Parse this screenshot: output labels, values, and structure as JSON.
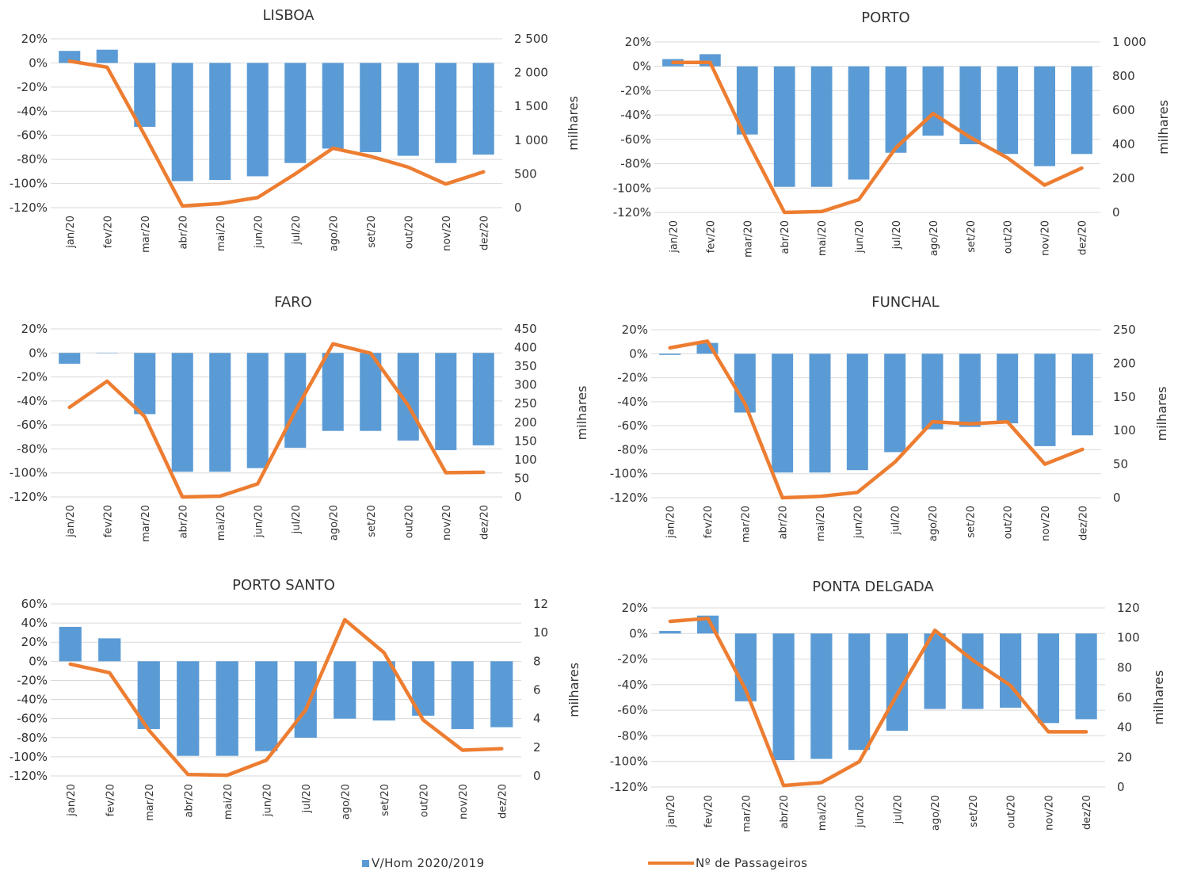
{
  "colors": {
    "bars": "#5B9BD5",
    "line": "#ED7D31",
    "grid": "#D9D9D9",
    "text": "#333333"
  },
  "legend": {
    "bar_label": "V/Hom 2020/2019",
    "line_label": "Nº de Passageiros"
  },
  "chart_data": [
    {
      "type": "bar",
      "title": "LISBOA",
      "categories": [
        "jan/20",
        "fev/20",
        "mar/20",
        "abr/20",
        "mai/20",
        "jun/20",
        "jul/20",
        "ago/20",
        "set/20",
        "out/20",
        "nov/20",
        "dez/20"
      ],
      "ylim": [
        -120,
        20
      ],
      "y_ticks": [
        20,
        0,
        -20,
        -40,
        -60,
        -80,
        -100,
        -120
      ],
      "y_tick_labels": [
        "20%",
        "0%",
        "-20%",
        "-40%",
        "-60%",
        "-80%",
        "-100%",
        "-120%"
      ],
      "y2lim": [
        0,
        2500
      ],
      "y2_ticks": [
        0,
        500,
        1000,
        1500,
        2000,
        2500
      ],
      "y2_tick_labels": [
        "0",
        "500",
        "1 000",
        "1 500",
        "2 000",
        "2 500"
      ],
      "y2label": "milhares",
      "series": [
        {
          "name": "V/Hom 2020/2019",
          "type": "bar",
          "axis": "left",
          "values": [
            10,
            11,
            -53,
            -98,
            -97,
            -94,
            -83,
            -71,
            -74,
            -77,
            -83,
            -76
          ]
        },
        {
          "name": "Nº de Passageiros",
          "type": "line",
          "axis": "right",
          "values": [
            2170,
            2080,
            1070,
            25,
            60,
            150,
            500,
            880,
            760,
            600,
            350,
            530
          ]
        }
      ]
    },
    {
      "type": "bar",
      "title": "PORTO",
      "categories": [
        "jan/20",
        "fev/20",
        "mar/20",
        "abr/20",
        "mai/20",
        "jun/20",
        "jul/20",
        "ago/20",
        "set/20",
        "out/20",
        "nov/20",
        "dez/20"
      ],
      "ylim": [
        -120,
        20
      ],
      "y_ticks": [
        20,
        0,
        -20,
        -40,
        -60,
        -80,
        -100,
        -120
      ],
      "y_tick_labels": [
        "20%",
        "0%",
        "-20%",
        "-40%",
        "-60%",
        "-80%",
        "-100%",
        "-120%"
      ],
      "y2lim": [
        0,
        1000
      ],
      "y2_ticks": [
        0,
        200,
        400,
        600,
        800,
        1000
      ],
      "y2_tick_labels": [
        "0",
        "200",
        "400",
        "600",
        "800",
        "1 000"
      ],
      "y2label": "milhares",
      "series": [
        {
          "name": "V/Hom 2020/2019",
          "type": "bar",
          "axis": "left",
          "values": [
            6,
            10,
            -56,
            -99,
            -99,
            -93,
            -71,
            -57,
            -64,
            -72,
            -82,
            -72
          ]
        },
        {
          "name": "Nº de Passageiros",
          "type": "line",
          "axis": "right",
          "values": [
            880,
            880,
            420,
            0,
            5,
            75,
            380,
            580,
            440,
            320,
            160,
            260
          ]
        }
      ]
    },
    {
      "type": "bar",
      "title": "FARO",
      "categories": [
        "jan/20",
        "fev/20",
        "mar/20",
        "abr/20",
        "mai/20",
        "jun/20",
        "jul/20",
        "ago/20",
        "set/20",
        "out/20",
        "nov/20",
        "dez/20"
      ],
      "ylim": [
        -120,
        20
      ],
      "y_ticks": [
        20,
        0,
        -20,
        -40,
        -60,
        -80,
        -100,
        -120
      ],
      "y_tick_labels": [
        "20%",
        "0%",
        "-20%",
        "-40%",
        "-60%",
        "-80%",
        "-100%",
        "-120%"
      ],
      "y2lim": [
        0,
        450
      ],
      "y2_ticks": [
        0,
        50,
        100,
        150,
        200,
        250,
        300,
        350,
        400,
        450
      ],
      "y2_tick_labels": [
        "0",
        "50",
        "100",
        "150",
        "200",
        "250",
        "300",
        "350",
        "400",
        "450"
      ],
      "y2label": "milhares",
      "series": [
        {
          "name": "V/Hom 2020/2019",
          "type": "bar",
          "axis": "left",
          "values": [
            -9,
            0,
            -51,
            -99,
            -99,
            -96,
            -79,
            -65,
            -65,
            -73,
            -81,
            -77
          ]
        },
        {
          "name": "Nº de Passageiros",
          "type": "line",
          "axis": "right",
          "values": [
            240,
            310,
            215,
            0,
            2,
            35,
            230,
            410,
            385,
            245,
            65,
            66
          ]
        }
      ]
    },
    {
      "type": "bar",
      "title": "FUNCHAL",
      "categories": [
        "jan/20",
        "fev/20",
        "mar/20",
        "abr/20",
        "mai/20",
        "jun/20",
        "jul/20",
        "ago/20",
        "set/20",
        "out/20",
        "nov/20",
        "dez/20"
      ],
      "ylim": [
        -120,
        20
      ],
      "y_ticks": [
        20,
        0,
        -20,
        -40,
        -60,
        -80,
        -100,
        -120
      ],
      "y_tick_labels": [
        "20%",
        "0%",
        "-20%",
        "-40%",
        "-60%",
        "-80%",
        "-100%",
        "-120%"
      ],
      "y2lim": [
        0,
        250
      ],
      "y2_ticks": [
        0,
        50,
        100,
        150,
        200,
        250
      ],
      "y2_tick_labels": [
        "0",
        "50",
        "100",
        "150",
        "200",
        "250"
      ],
      "y2label": "milhares",
      "series": [
        {
          "name": "V/Hom 2020/2019",
          "type": "bar",
          "axis": "left",
          "values": [
            -1,
            9,
            -49,
            -99,
            -99,
            -97,
            -82,
            -63,
            -61,
            -58,
            -77,
            -68
          ]
        },
        {
          "name": "Nº de Passageiros",
          "type": "line",
          "axis": "right",
          "values": [
            223,
            233,
            140,
            0,
            2,
            8,
            53,
            113,
            110,
            113,
            50,
            72
          ]
        }
      ]
    },
    {
      "type": "bar",
      "title": "PORTO SANTO",
      "categories": [
        "jan/20",
        "fev/20",
        "mar/20",
        "abr/20",
        "mai/20",
        "jun/20",
        "jul/20",
        "ago/20",
        "set/20",
        "out/20",
        "nov/20",
        "dez/20"
      ],
      "ylim": [
        -120,
        60
      ],
      "y_ticks": [
        60,
        40,
        20,
        0,
        -20,
        -40,
        -60,
        -80,
        -100,
        -120
      ],
      "y_tick_labels": [
        "60%",
        "40%",
        "20%",
        "0%",
        "-20%",
        "-40%",
        "-60%",
        "-80%",
        "-100%",
        "-120%"
      ],
      "y2lim": [
        0,
        12
      ],
      "y2_ticks": [
        0,
        2,
        4,
        6,
        8,
        10,
        12
      ],
      "y2_tick_labels": [
        "0",
        "2",
        "4",
        "6",
        "8",
        "10",
        "12"
      ],
      "y2label": "milhares",
      "series": [
        {
          "name": "V/Hom 2020/2019",
          "type": "bar",
          "axis": "left",
          "values": [
            36,
            24,
            -71,
            -99,
            -99,
            -94,
            -80,
            -60,
            -62,
            -57,
            -71,
            -69
          ]
        },
        {
          "name": "Nº de Passageiros",
          "type": "line",
          "axis": "right",
          "values": [
            7.8,
            7.2,
            3.2,
            0.1,
            0.05,
            1.1,
            4.6,
            10.9,
            8.6,
            3.9,
            1.8,
            1.9
          ]
        }
      ]
    },
    {
      "type": "bar",
      "title": "PONTA DELGADA",
      "categories": [
        "jan/20",
        "fev/20",
        "mar/20",
        "abr/20",
        "mai/20",
        "jun/20",
        "jul/20",
        "ago/20",
        "set/20",
        "out/20",
        "nov/20",
        "dez/20"
      ],
      "ylim": [
        -120,
        20
      ],
      "y_ticks": [
        20,
        0,
        -20,
        -40,
        -60,
        -80,
        -100,
        -120
      ],
      "y_tick_labels": [
        "20%",
        "0%",
        "-20%",
        "-40%",
        "-60%",
        "-80%",
        "-100%",
        "-120%"
      ],
      "y2lim": [
        0,
        120
      ],
      "y2_ticks": [
        0,
        20,
        40,
        60,
        80,
        100,
        120
      ],
      "y2_tick_labels": [
        "0",
        "20",
        "40",
        "60",
        "80",
        "100",
        "120"
      ],
      "y2label": "milhares",
      "series": [
        {
          "name": "V/Hom 2020/2019",
          "type": "bar",
          "axis": "left",
          "values": [
            2,
            14,
            -53,
            -99,
            -98,
            -91,
            -76,
            -59,
            -59,
            -58,
            -70,
            -67
          ]
        },
        {
          "name": "Nº de Passageiros",
          "type": "line",
          "axis": "right",
          "values": [
            111,
            113,
            65,
            1,
            3,
            17,
            62,
            105,
            85,
            68,
            37,
            37
          ]
        }
      ]
    }
  ]
}
